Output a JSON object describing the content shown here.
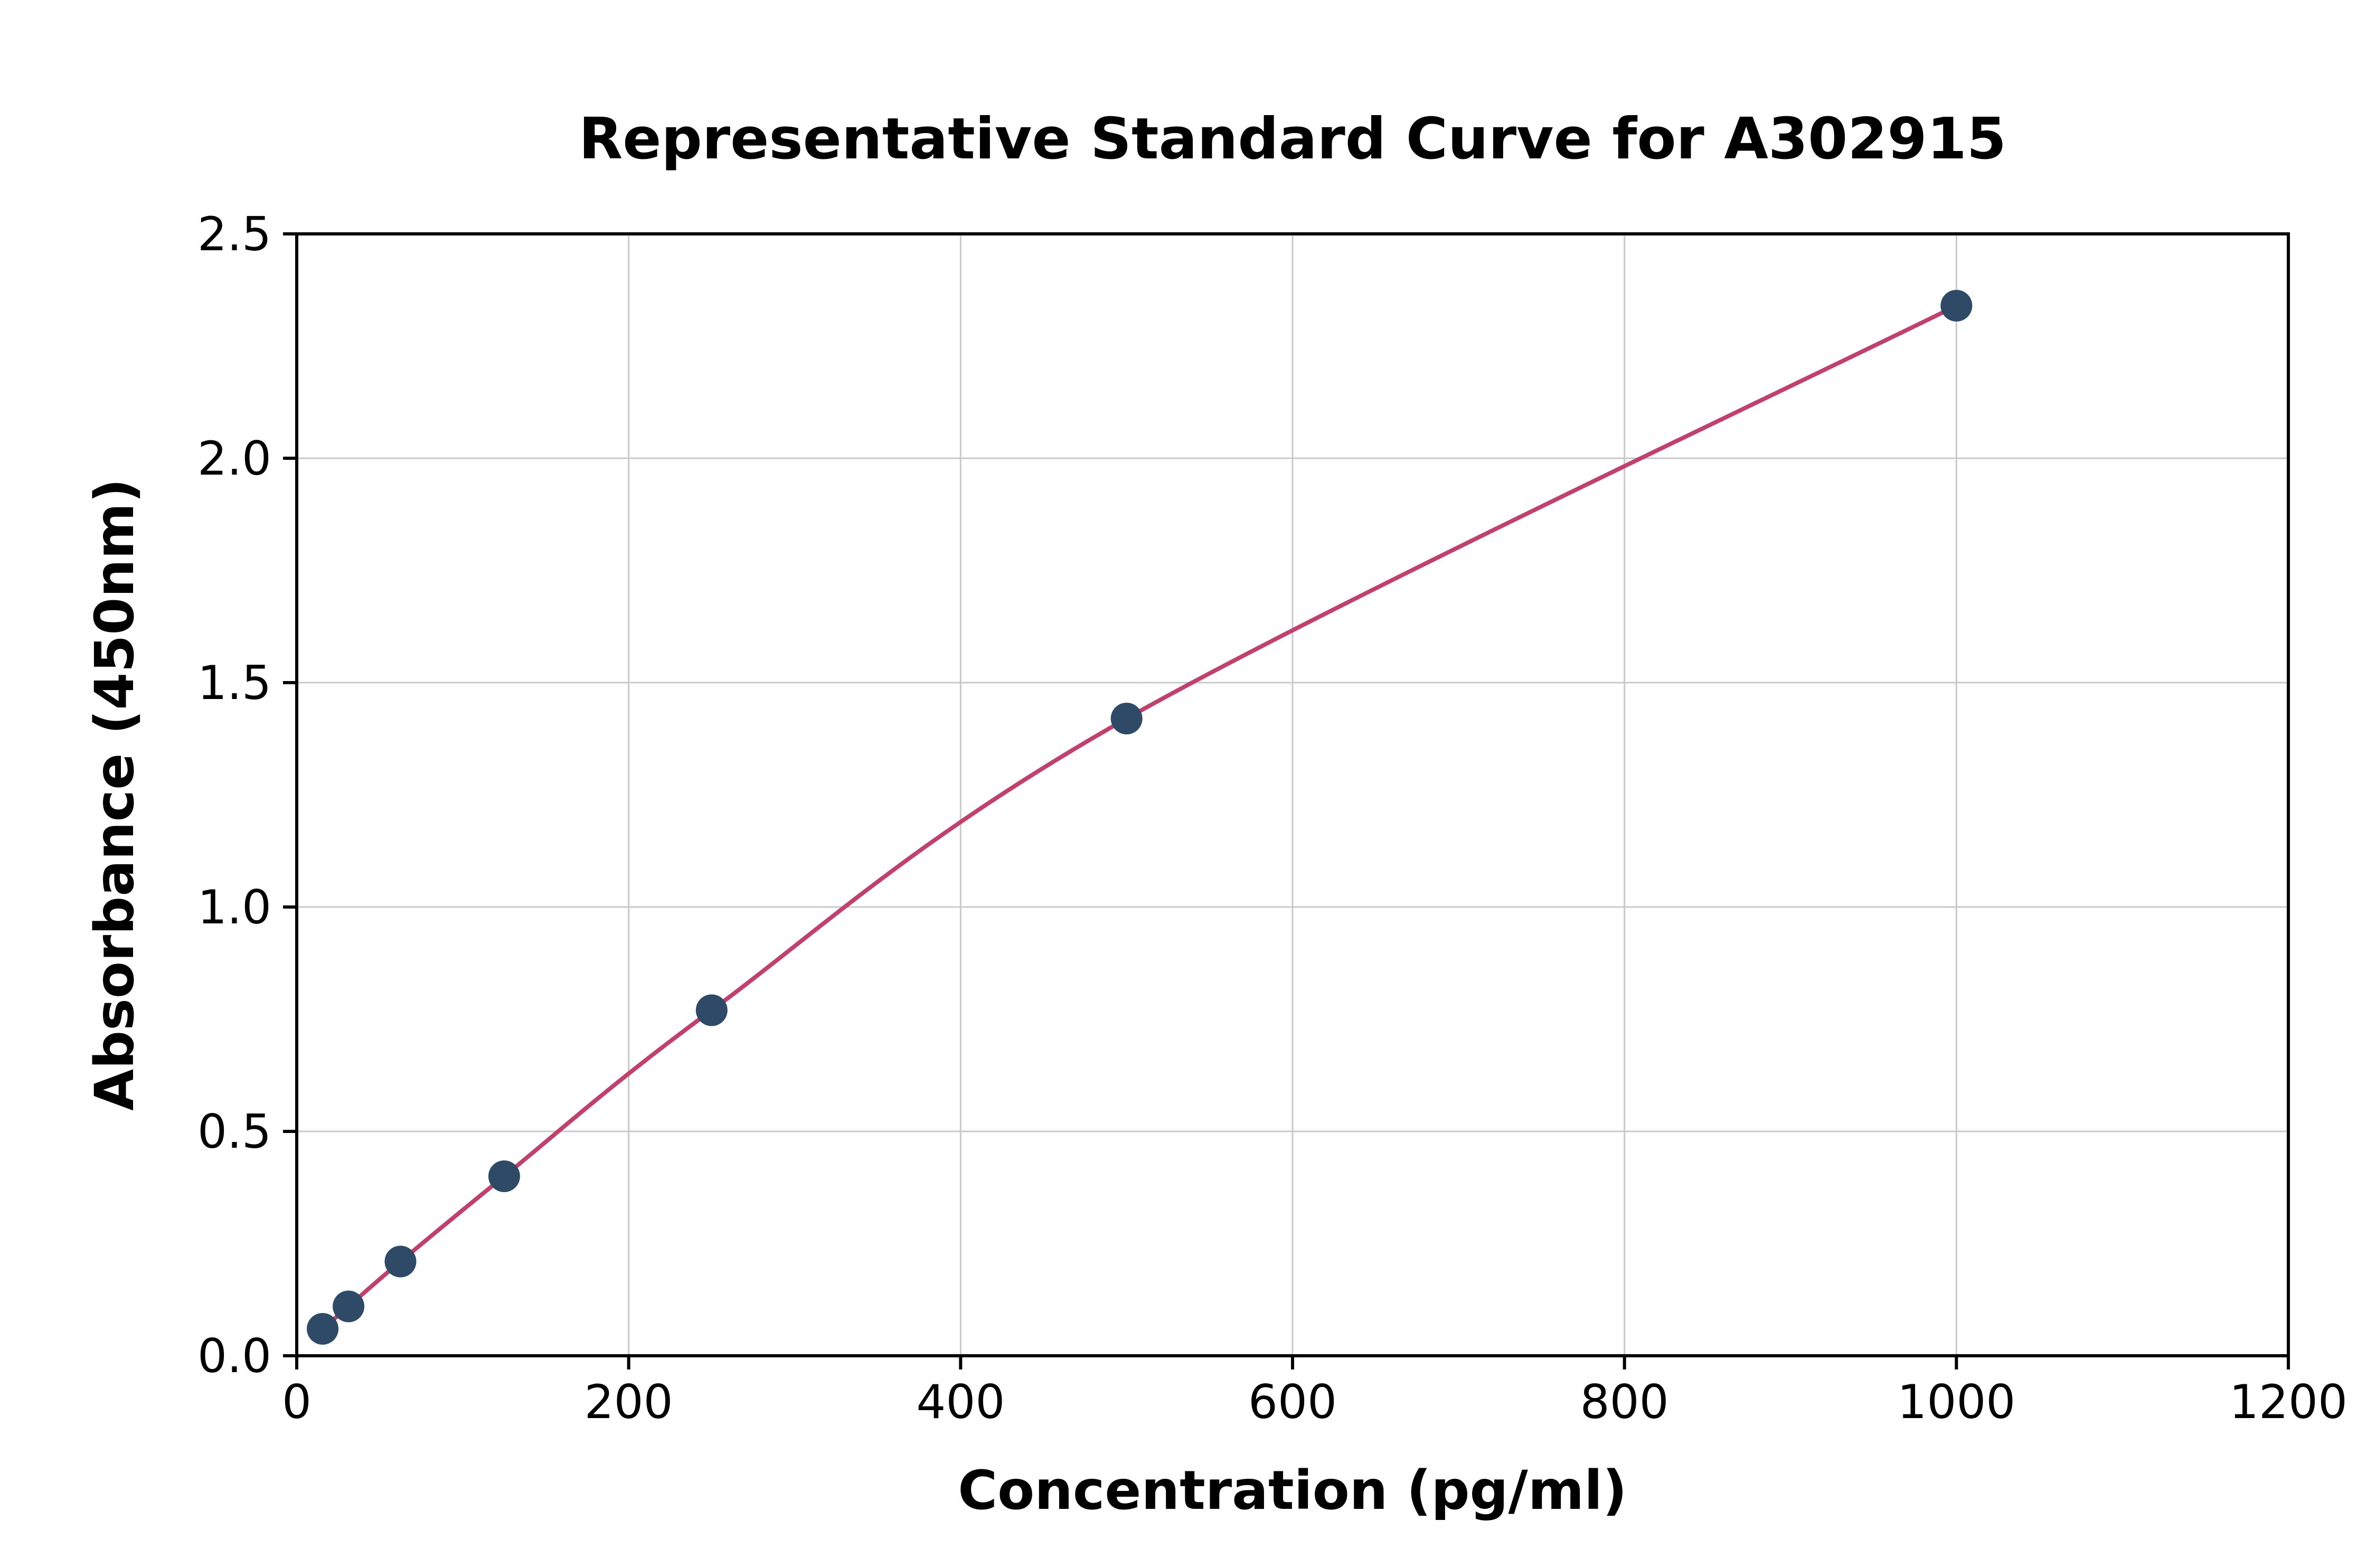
{
  "chart_data": {
    "type": "scatter",
    "title": "Representative Standard Curve for A302915",
    "xlabel": "Concentration (pg/ml)",
    "ylabel": "Absorbance (450nm)",
    "xlim": [
      0,
      1200
    ],
    "ylim": [
      0,
      2.5
    ],
    "xticks": [
      0,
      200,
      400,
      600,
      800,
      1000,
      1200
    ],
    "xtick_labels": [
      "0",
      "200",
      "400",
      "600",
      "800",
      "1000",
      "1200"
    ],
    "yticks": [
      0,
      0.5,
      1.0,
      1.5,
      2.0,
      2.5
    ],
    "ytick_labels": [
      "0.0",
      "0.5",
      "1.0",
      "1.5",
      "2.0",
      "2.5"
    ],
    "grid": true,
    "legend": "none",
    "series": [
      {
        "name": "standard-points-with-fit-curve",
        "x": [
          15.6,
          31.2,
          62.5,
          125,
          250,
          500,
          1000
        ],
        "y": [
          0.06,
          0.11,
          0.21,
          0.4,
          0.77,
          1.42,
          2.34
        ],
        "point_color": "#2e4a66",
        "line_color": "#c0416e"
      }
    ],
    "colors": {
      "background": "#ffffff",
      "grid": "#c9c9c9",
      "axis": "#000000"
    }
  }
}
